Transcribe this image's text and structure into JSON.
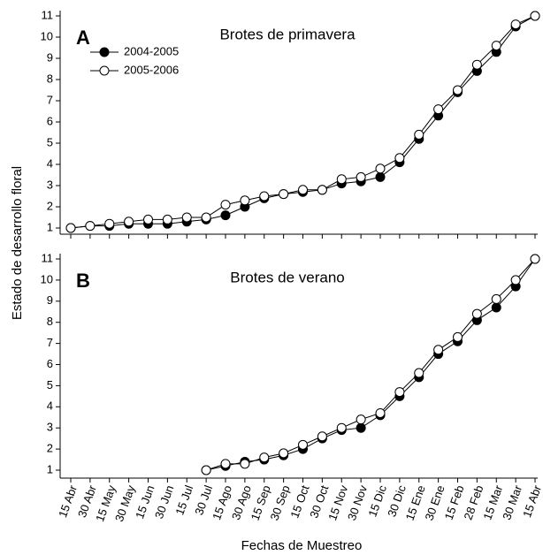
{
  "chart_data": {
    "type": "line",
    "ylabel": "Estado de desarrollo floral",
    "xlabel": "Fechas de Muestreo",
    "categories": [
      "15 Abr",
      "30 Abr",
      "15 May",
      "30 May",
      "15 Jun",
      "30 Jun",
      "15 Jul",
      "30 Jul",
      "15 Ago",
      "30 Ago",
      "15 Sep",
      "30 Sep",
      "15 Oct",
      "30 Oct",
      "15 Nov",
      "30 Nov",
      "15 Dic",
      "30 Dic",
      "15 Ene",
      "30 Ene",
      "15 Feb",
      "28 Feb",
      "15 Mar",
      "30 Mar",
      "15 Abr"
    ],
    "legend": "upper left",
    "panels": [
      {
        "label": "A",
        "title": "Brotes de primavera",
        "ylim": [
          1,
          11
        ],
        "yticks": [
          1,
          2,
          3,
          4,
          5,
          6,
          7,
          8,
          9,
          10,
          11
        ],
        "series": [
          {
            "name": "2004-2005",
            "color": "#000000",
            "values": [
              1.0,
              1.1,
              1.1,
              1.2,
              1.2,
              1.2,
              1.3,
              1.4,
              1.6,
              2.0,
              2.4,
              2.6,
              2.7,
              2.8,
              3.1,
              3.2,
              3.4,
              4.1,
              5.2,
              6.3,
              7.4,
              8.4,
              9.3,
              10.5,
              11.0
            ]
          },
          {
            "name": "2005-2006",
            "color": "#ffffff",
            "values": [
              1.0,
              1.1,
              1.2,
              1.3,
              1.4,
              1.4,
              1.5,
              1.5,
              2.1,
              2.3,
              2.5,
              2.6,
              2.8,
              2.8,
              3.3,
              3.4,
              3.8,
              4.3,
              5.4,
              6.6,
              7.5,
              8.7,
              9.6,
              10.6,
              11.0
            ]
          }
        ]
      },
      {
        "label": "B",
        "title": "Brotes de verano",
        "ylim": [
          1,
          11
        ],
        "yticks": [
          1,
          2,
          3,
          4,
          5,
          6,
          7,
          8,
          9,
          10,
          11
        ],
        "series": [
          {
            "color": "#000000",
            "values": [
              null,
              null,
              null,
              null,
              null,
              null,
              null,
              1.0,
              1.2,
              1.4,
              1.5,
              1.7,
              2.0,
              2.5,
              2.9,
              3.0,
              3.6,
              4.5,
              5.4,
              6.5,
              7.1,
              8.1,
              8.7,
              9.7,
              11.0
            ]
          },
          {
            "color": "#ffffff",
            "values": [
              null,
              null,
              null,
              null,
              null,
              null,
              null,
              1.0,
              1.3,
              1.3,
              1.6,
              1.8,
              2.2,
              2.6,
              3.0,
              3.4,
              3.7,
              4.7,
              5.6,
              6.7,
              7.3,
              8.4,
              9.1,
              10.0,
              11.0
            ]
          }
        ]
      }
    ]
  }
}
